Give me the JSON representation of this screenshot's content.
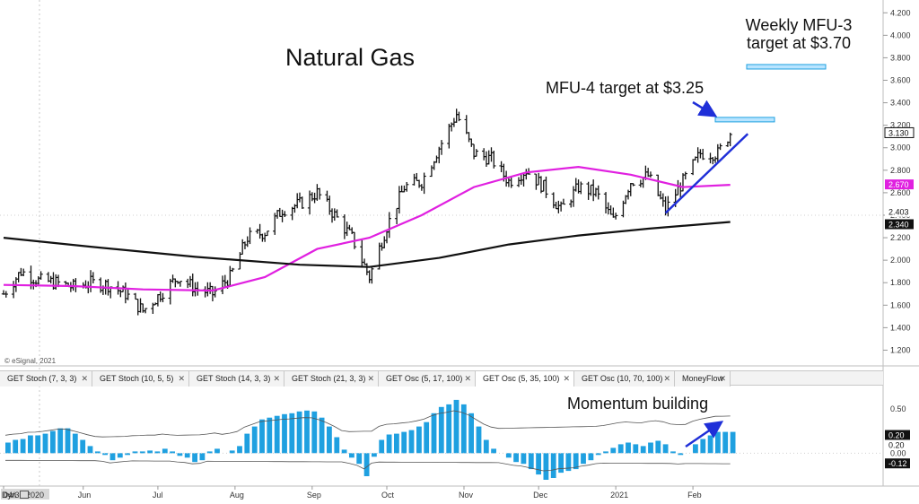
{
  "chart_data": [
    {
      "type": "ohlc",
      "title": "Natural Gas",
      "series": [
        {
          "name": "",
          "values": [
            {
              "d": "2020-04-30",
              "c": 1.7
            },
            {
              "d": "2020-05-07",
              "c": 1.9
            },
            {
              "d": "2020-05-14",
              "c": 1.82
            },
            {
              "d": "2020-05-21",
              "c": 1.8
            },
            {
              "d": "2020-05-28",
              "c": 1.76
            },
            {
              "d": "2020-06-04",
              "c": 1.8
            },
            {
              "d": "2020-06-11",
              "c": 1.78
            },
            {
              "d": "2020-06-18",
              "c": 1.7
            },
            {
              "d": "2020-06-25",
              "c": 1.55
            },
            {
              "d": "2020-07-02",
              "c": 1.7
            },
            {
              "d": "2020-07-09",
              "c": 1.85
            },
            {
              "d": "2020-07-16",
              "c": 1.75
            },
            {
              "d": "2020-07-23",
              "c": 1.7
            },
            {
              "d": "2020-07-30",
              "c": 1.85
            },
            {
              "d": "2020-08-06",
              "c": 2.2
            },
            {
              "d": "2020-08-13",
              "c": 2.25
            },
            {
              "d": "2020-08-20",
              "c": 2.45
            },
            {
              "d": "2020-08-27",
              "c": 2.5
            },
            {
              "d": "2020-09-03",
              "c": 2.6
            },
            {
              "d": "2020-09-10",
              "c": 2.4
            },
            {
              "d": "2020-09-17",
              "c": 2.2
            },
            {
              "d": "2020-09-24",
              "c": 1.85
            },
            {
              "d": "2020-10-01",
              "c": 2.3
            },
            {
              "d": "2020-10-08",
              "c": 2.65
            },
            {
              "d": "2020-10-15",
              "c": 2.7
            },
            {
              "d": "2020-10-22",
              "c": 3.0
            },
            {
              "d": "2020-10-29",
              "c": 3.3
            },
            {
              "d": "2020-11-05",
              "c": 2.95
            },
            {
              "d": "2020-11-12",
              "c": 2.9
            },
            {
              "d": "2020-11-19",
              "c": 2.7
            },
            {
              "d": "2020-11-26",
              "c": 2.8
            },
            {
              "d": "2020-12-03",
              "c": 2.65
            },
            {
              "d": "2020-12-10",
              "c": 2.45
            },
            {
              "d": "2020-12-17",
              "c": 2.65
            },
            {
              "d": "2020-12-24",
              "c": 2.6
            },
            {
              "d": "2020-12-31",
              "c": 2.35
            },
            {
              "d": "2021-01-07",
              "c": 2.7
            },
            {
              "d": "2021-01-14",
              "c": 2.75
            },
            {
              "d": "2021-01-21",
              "c": 2.45
            },
            {
              "d": "2021-01-28",
              "c": 2.7
            },
            {
              "d": "2021-02-04",
              "c": 2.95
            },
            {
              "d": "2021-02-11",
              "c": 2.95
            },
            {
              "d": "2021-02-16",
              "c": 3.13
            }
          ]
        },
        {
          "name": "",
          "color": "#e020e0",
          "values": [
            {
              "d": "2020-04-30",
              "c": 1.78
            },
            {
              "d": "2020-05-28",
              "c": 1.77
            },
            {
              "d": "2020-06-25",
              "c": 1.74
            },
            {
              "d": "2020-07-23",
              "c": 1.73
            },
            {
              "d": "2020-08-13",
              "c": 1.85
            },
            {
              "d": "2020-09-03",
              "c": 2.1
            },
            {
              "d": "2020-09-24",
              "c": 2.2
            },
            {
              "d": "2020-10-15",
              "c": 2.4
            },
            {
              "d": "2020-11-05",
              "c": 2.65
            },
            {
              "d": "2020-11-26",
              "c": 2.78
            },
            {
              "d": "2020-12-17",
              "c": 2.83
            },
            {
              "d": "2021-01-07",
              "c": 2.76
            },
            {
              "d": "2021-01-28",
              "c": 2.65
            },
            {
              "d": "2021-02-16",
              "c": 2.67
            }
          ]
        },
        {
          "name": "",
          "color": "#111111",
          "values": [
            {
              "d": "2020-04-30",
              "c": 2.2
            },
            {
              "d": "2020-06-04",
              "c": 2.12
            },
            {
              "d": "2020-07-16",
              "c": 2.03
            },
            {
              "d": "2020-08-27",
              "c": 1.96
            },
            {
              "d": "2020-09-24",
              "c": 1.94
            },
            {
              "d": "2020-10-22",
              "c": 2.02
            },
            {
              "d": "2020-11-19",
              "c": 2.14
            },
            {
              "d": "2020-12-17",
              "c": 2.22
            },
            {
              "d": "2021-01-14",
              "c": 2.28
            },
            {
              "d": "2021-02-16",
              "c": 2.34
            }
          ]
        }
      ],
      "ylim": [
        1.1,
        4.25
      ],
      "yticks": [
        "4.200",
        "4.000",
        "3.800",
        "3.600",
        "3.400",
        "3.200",
        "3.000",
        "2.800",
        "2.600",
        "2.400",
        "2.200",
        "2.000",
        "1.800",
        "1.600",
        "1.400",
        "1.200"
      ],
      "xticks": [
        "04/30/2020",
        "Jun",
        "Jul",
        "Aug",
        "Sep",
        "Oct",
        "Nov",
        "Dec",
        "2021",
        "Feb"
      ],
      "last_values": [
        {
          "label": "3.130",
          "color": "#111111"
        },
        {
          "label": "2.670",
          "color": "#e020e0"
        },
        {
          "label": "2.403",
          "color": "#ffffff"
        },
        {
          "label": "2.340",
          "color": "#111111"
        }
      ],
      "annotations": [
        {
          "text": "Weekly MFU-3\ntarget at $3.70",
          "target_low": 3.7,
          "target_high": 3.74
        },
        {
          "text": "MFU-4 target at $3.25",
          "target_low": 3.23,
          "target_high": 3.27
        }
      ],
      "trendline": {
        "from": {
          "d": "2021-01-21",
          "v": 2.42
        },
        "to": {
          "d": "2021-02-18",
          "v": 3.06
        }
      },
      "grid": false
    },
    {
      "type": "bar",
      "title": "",
      "annotation": "Momentum building",
      "ylim": [
        -0.35,
        0.68
      ],
      "yticks": [
        "0.50",
        "0.00"
      ],
      "last_values": [
        {
          "label": "0.20",
          "color": "#111111"
        },
        {
          "label": "0.20",
          "color": "#ffffff"
        },
        {
          "label": "-0.12",
          "color": "#ffffff"
        }
      ],
      "values": [
        0.12,
        0.15,
        0.16,
        0.2,
        0.2,
        0.22,
        0.25,
        0.28,
        0.28,
        0.22,
        0.15,
        0.08,
        0.02,
        -0.02,
        -0.08,
        -0.05,
        -0.02,
        0.02,
        0.02,
        0.03,
        0.02,
        0.05,
        0.02,
        -0.03,
        -0.05,
        -0.1,
        -0.08,
        0.02,
        0.05,
        0.0,
        0.03,
        0.08,
        0.22,
        0.3,
        0.38,
        0.4,
        0.42,
        0.44,
        0.45,
        0.47,
        0.48,
        0.47,
        0.4,
        0.3,
        0.18,
        0.04,
        -0.05,
        -0.12,
        -0.26,
        -0.04,
        0.15,
        0.21,
        0.22,
        0.24,
        0.26,
        0.3,
        0.35,
        0.45,
        0.52,
        0.55,
        0.6,
        0.55,
        0.45,
        0.3,
        0.15,
        0.05,
        0.0,
        -0.05,
        -0.1,
        -0.12,
        -0.18,
        -0.24,
        -0.3,
        -0.28,
        -0.22,
        -0.2,
        -0.18,
        -0.12,
        -0.08,
        -0.02,
        0.02,
        0.06,
        0.1,
        0.12,
        0.1,
        0.08,
        0.12,
        0.14,
        0.1,
        0.02,
        -0.02,
        0.0,
        0.1,
        0.16,
        0.2,
        0.24,
        0.24,
        0.24
      ]
    }
  ],
  "tabs": [
    "GET Stoch (7, 3, 3)",
    "GET Stoch (10, 5, 5)",
    "GET Stoch (14, 3, 3)",
    "GET Stoch (21, 3, 3)",
    "GET Osc (5, 17, 100)",
    "GET Osc (5, 35, 100)",
    "GET Osc (10, 70, 100)",
    "MoneyFlow"
  ],
  "active_tab": 5,
  "tab_close": "✕",
  "credit": "© eSignal, 2021",
  "dyn_label": "Dyn",
  "colors": {
    "osc_bar": "#1fa0e0",
    "arrow": "#1f2fd8",
    "target": "#b8e4ff",
    "target_border": "#1fa0e0"
  }
}
